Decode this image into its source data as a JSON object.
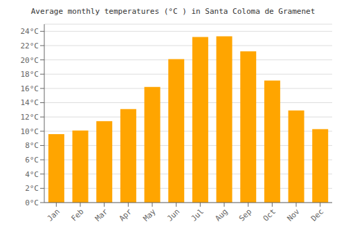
{
  "chart_data": {
    "type": "bar",
    "title": "Average monthly temperatures (°C ) in Santa Coloma de Gramenet",
    "categories": [
      "Jan",
      "Feb",
      "Mar",
      "Apr",
      "May",
      "Jun",
      "Jul",
      "Aug",
      "Sep",
      "Oct",
      "Nov",
      "Dec"
    ],
    "values": [
      9.6,
      10.1,
      11.4,
      13.1,
      16.2,
      20.1,
      23.2,
      23.3,
      21.2,
      17.1,
      12.9,
      10.3
    ],
    "color": "#FFA500",
    "ylim": [
      0,
      25
    ],
    "yticks": [
      {
        "value": 0,
        "label": "0°C"
      },
      {
        "value": 2,
        "label": "2°C"
      },
      {
        "value": 4,
        "label": "4°C"
      },
      {
        "value": 6,
        "label": "6°C"
      },
      {
        "value": 8,
        "label": "8°C"
      },
      {
        "value": 10,
        "label": "10°C"
      },
      {
        "value": 12,
        "label": "12°C"
      },
      {
        "value": 14,
        "label": "14°C"
      },
      {
        "value": 16,
        "label": "16°C"
      },
      {
        "value": 18,
        "label": "18°C"
      },
      {
        "value": 20,
        "label": "20°C"
      },
      {
        "value": 22,
        "label": "22°C"
      },
      {
        "value": 24,
        "label": "24°C"
      }
    ],
    "grid": true
  }
}
